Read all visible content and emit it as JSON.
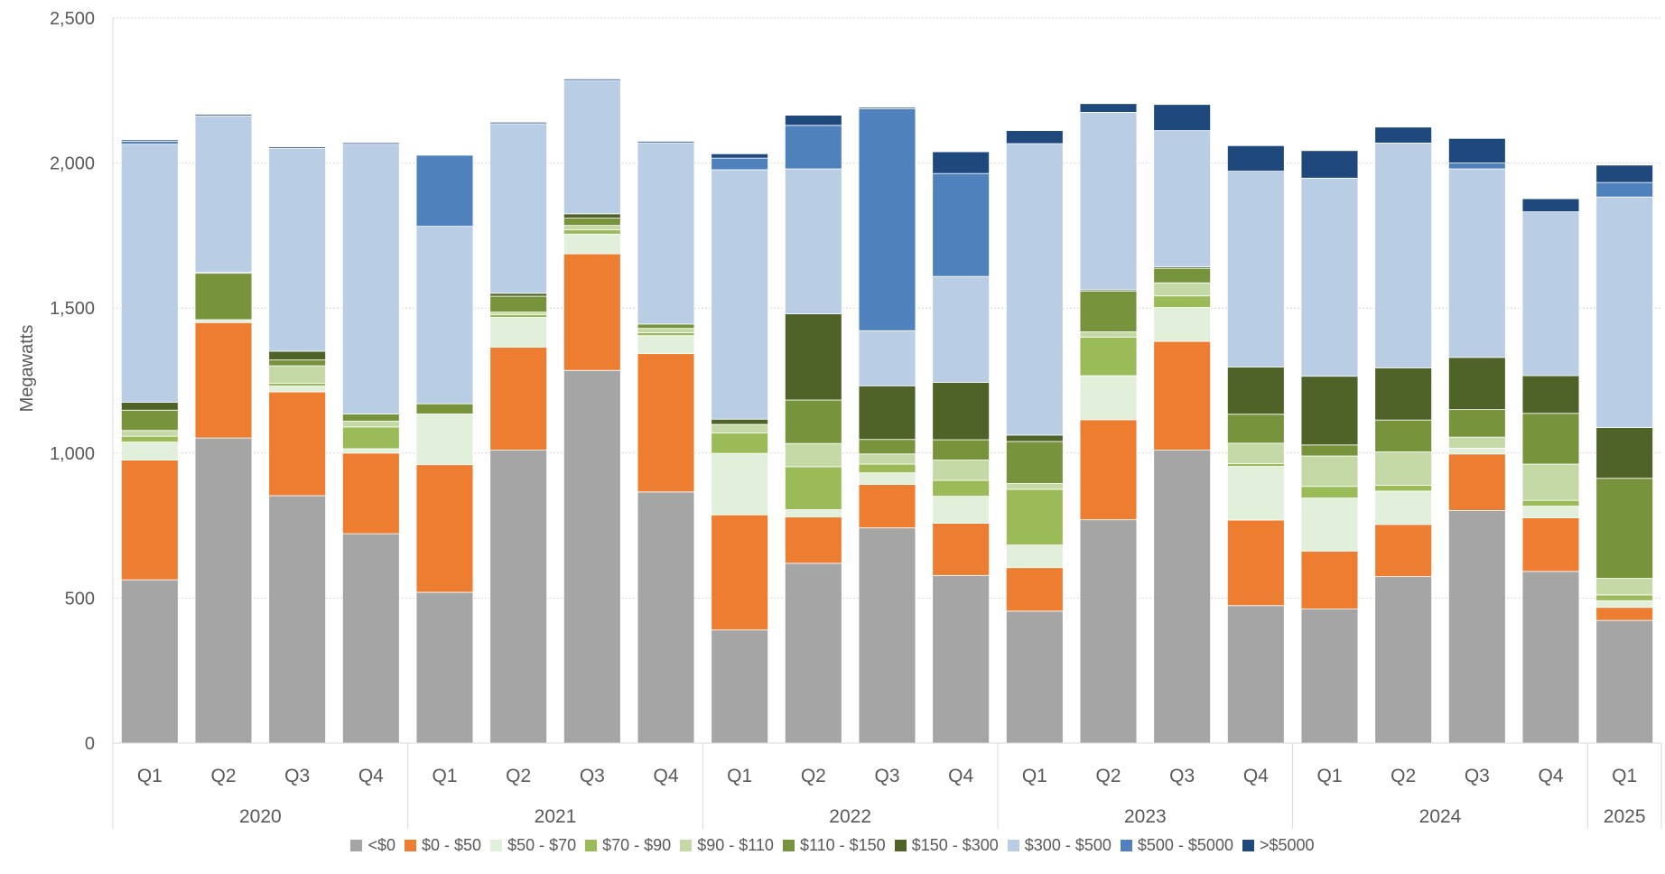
{
  "chart_data": {
    "type": "bar",
    "stacked": true,
    "title": "",
    "xlabel": "",
    "ylabel": "Megawatts",
    "ylim": [
      0,
      2500
    ],
    "yticks": [
      "0",
      "500",
      "1,000",
      "1,500",
      "2,000",
      "2,500"
    ],
    "ytick_values": [
      0,
      500,
      1000,
      1500,
      2000,
      2500
    ],
    "grid": true,
    "legend_position": "bottom",
    "categories": [
      "Q1",
      "Q2",
      "Q3",
      "Q4",
      "Q1",
      "Q2",
      "Q3",
      "Q4",
      "Q1",
      "Q2",
      "Q3",
      "Q4",
      "Q1",
      "Q2",
      "Q3",
      "Q4",
      "Q1",
      "Q2",
      "Q3",
      "Q4",
      "Q1"
    ],
    "groups": [
      {
        "label": "2020",
        "count": 4
      },
      {
        "label": "2021",
        "count": 4
      },
      {
        "label": "2022",
        "count": 4
      },
      {
        "label": "2023",
        "count": 4
      },
      {
        "label": "2024",
        "count": 4
      },
      {
        "label": "2025",
        "count": 1
      }
    ],
    "series": [
      {
        "name": "<$0",
        "color": "#a5a5a5",
        "values": [
          563,
          1052,
          853,
          722,
          520,
          1010,
          1285,
          866,
          390,
          620,
          742,
          578,
          455,
          770,
          1010,
          474,
          462,
          574,
          802,
          592,
          423
        ]
      },
      {
        "name": "$0 - $50",
        "color": "#ed7d31",
        "values": [
          413,
          398,
          358,
          278,
          440,
          355,
          402,
          477,
          397,
          160,
          150,
          180,
          150,
          345,
          375,
          295,
          200,
          180,
          195,
          185,
          45
        ]
      },
      {
        "name": "$50 - $70",
        "color": "#e2efda",
        "values": [
          62,
          10,
          20,
          15,
          175,
          103,
          68,
          62,
          212,
          25,
          40,
          93,
          78,
          152,
          117,
          185,
          183,
          115,
          20,
          40,
          23
        ]
      },
      {
        "name": "$70 - $90",
        "color": "#9bbb59",
        "values": [
          20,
          0,
          10,
          75,
          0,
          10,
          15,
          10,
          70,
          148,
          30,
          55,
          192,
          133,
          40,
          10,
          40,
          20,
          0,
          20,
          20
        ]
      },
      {
        "name": "$90 - $110",
        "color": "#c5d9a6",
        "values": [
          20,
          0,
          60,
          20,
          0,
          8,
          15,
          15,
          30,
          80,
          35,
          70,
          20,
          18,
          45,
          70,
          105,
          115,
          38,
          125,
          57
        ]
      },
      {
        "name": "$110 - $150",
        "color": "#77933c",
        "values": [
          70,
          160,
          20,
          25,
          35,
          55,
          25,
          15,
          0,
          150,
          50,
          70,
          145,
          140,
          50,
          100,
          38,
          110,
          95,
          175,
          345
        ]
      },
      {
        "name": "$150 - $300",
        "color": "#4f6228",
        "values": [
          27,
          3,
          30,
          0,
          0,
          10,
          15,
          0,
          18,
          297,
          185,
          198,
          22,
          5,
          5,
          163,
          237,
          180,
          180,
          130,
          175
        ]
      },
      {
        "name": "$300 - $500",
        "color": "#b9cde5",
        "values": [
          890,
          540,
          700,
          930,
          612,
          585,
          460,
          625,
          860,
          500,
          190,
          365,
          1005,
          612,
          470,
          675,
          683,
          775,
          650,
          565,
          795
        ]
      },
      {
        "name": "$500 - $5000",
        "color": "#4f81bd",
        "values": [
          10,
          0,
          0,
          0,
          245,
          0,
          0,
          0,
          40,
          150,
          765,
          355,
          0,
          0,
          0,
          0,
          0,
          0,
          20,
          0,
          50
        ]
      },
      {
        "name": ">$5000",
        "color": "#1f497d",
        "values": [
          5,
          5,
          5,
          5,
          0,
          5,
          5,
          5,
          15,
          35,
          5,
          75,
          45,
          30,
          90,
          88,
          95,
          55,
          85,
          45,
          60
        ]
      }
    ]
  }
}
